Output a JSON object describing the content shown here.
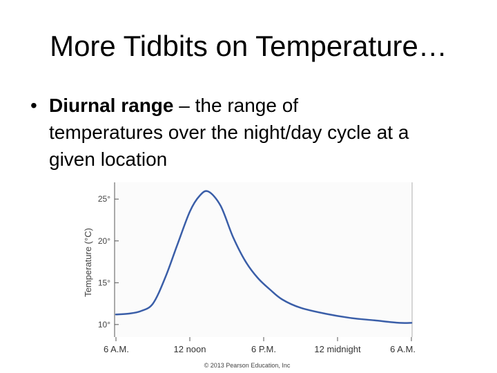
{
  "slide": {
    "title": "More Tidbits on Temperature…",
    "bullet_symbol": "•",
    "bullet_term": "Diurnal range",
    "bullet_rest_line1": " – the range of",
    "bullet_line2": "temperatures over the night/day cycle at a",
    "bullet_line3": "given location",
    "copyright": "© 2013 Pearson Education, Inc"
  },
  "chart_data": {
    "type": "line",
    "ylabel": "Temperature (°C)",
    "xlabel": "",
    "y_ticks": [
      "25°",
      "20°",
      "15°",
      "10°"
    ],
    "y_tick_values": [
      25,
      20,
      15,
      10
    ],
    "x_ticks": [
      "6 A.M.",
      "12 noon",
      "6 P.M.",
      "12 midnight",
      "6 A.M."
    ],
    "x_tick_hours": [
      0,
      6,
      12,
      18,
      24
    ],
    "ylim": [
      8.5,
      27
    ],
    "xlim": [
      0,
      24
    ],
    "grid": false,
    "colors": {
      "line": "#3a5ea8",
      "axis": "#555555",
      "plot_bg": "#fbfbfb"
    },
    "series": [
      {
        "hours": [
          0,
          1,
          2,
          3,
          4,
          5,
          6,
          6.8,
          7.5,
          8.5,
          9.5,
          10.5,
          11.5,
          12.5,
          13.5,
          15,
          17,
          19,
          21,
          23,
          24
        ],
        "values": [
          11.2,
          11.3,
          11.6,
          12.5,
          15.6,
          19.6,
          23.5,
          25.4,
          25.9,
          24.2,
          20.5,
          17.6,
          15.6,
          14.2,
          13.0,
          12.0,
          11.3,
          10.8,
          10.5,
          10.2,
          10.2
        ]
      }
    ]
  }
}
